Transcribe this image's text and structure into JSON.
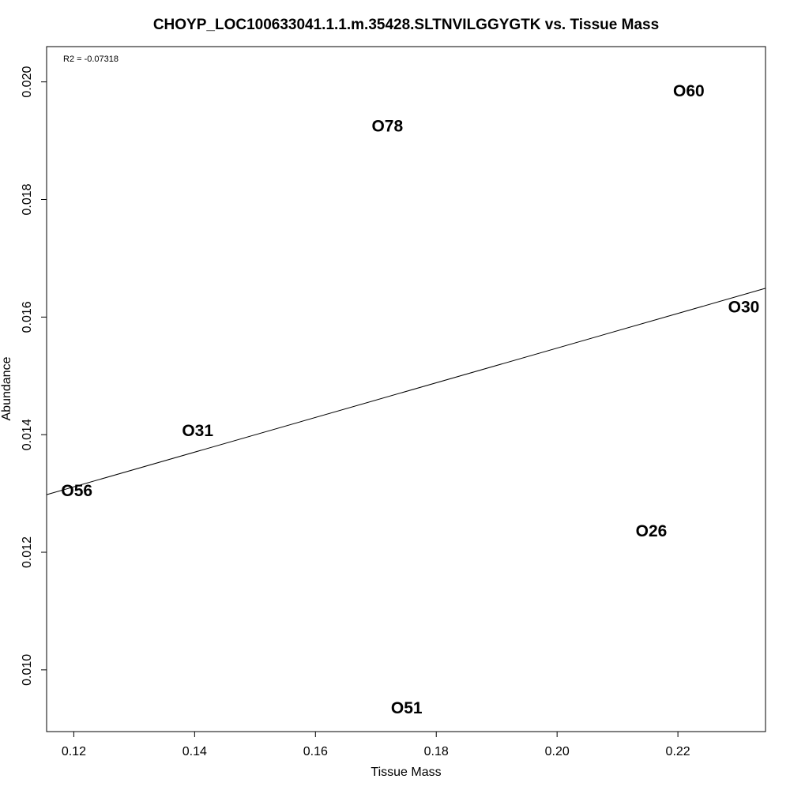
{
  "chart_data": {
    "type": "scatter",
    "title": "CHOYP_LOC100633041.1.1.m.35428.SLTNVILGGYGTK vs. Tissue Mass",
    "xlabel": "Tissue Mass",
    "ylabel": "Abundance",
    "xlim": [
      0.1155,
      0.2345
    ],
    "ylim": [
      0.00895,
      0.0206
    ],
    "xticks": [
      0.12,
      0.14,
      0.16,
      0.18,
      0.2,
      0.22
    ],
    "xtick_labels": [
      "0.12",
      "0.14",
      "0.16",
      "0.18",
      "0.20",
      "0.22"
    ],
    "yticks": [
      0.01,
      0.012,
      0.014,
      0.016,
      0.018,
      0.02
    ],
    "ytick_labels": [
      "0.010",
      "0.012",
      "0.014",
      "0.016",
      "0.018",
      "0.020"
    ],
    "annotation": "R2 = -0.07318",
    "grid": false,
    "points": [
      {
        "label": "O56",
        "x": 0.1205,
        "y": 0.01305
      },
      {
        "label": "O31",
        "x": 0.1405,
        "y": 0.01407
      },
      {
        "label": "O78",
        "x": 0.1719,
        "y": 0.01925
      },
      {
        "label": "O60",
        "x": 0.2218,
        "y": 0.01985
      },
      {
        "label": "O30",
        "x": 0.2309,
        "y": 0.01617
      },
      {
        "label": "O26",
        "x": 0.2156,
        "y": 0.01236
      },
      {
        "label": "O51",
        "x": 0.1751,
        "y": 0.00935
      }
    ],
    "regression_line": {
      "x": [
        0.1155,
        0.2345
      ],
      "y": [
        0.01298,
        0.01649
      ]
    }
  }
}
